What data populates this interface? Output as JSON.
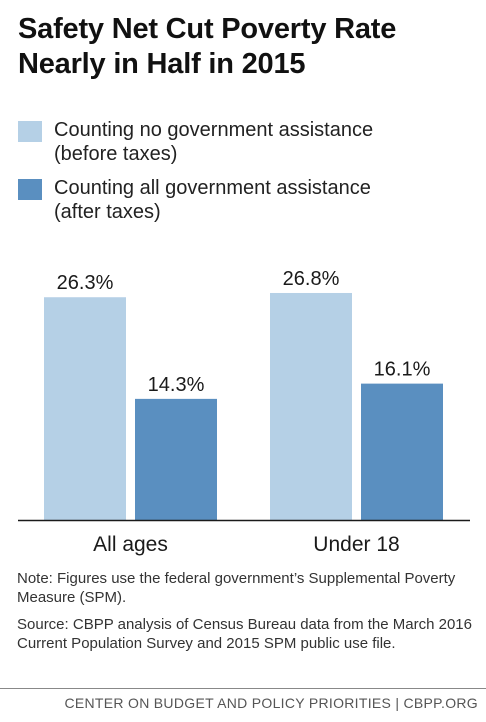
{
  "title_lines": [
    "Safety Net Cut Poverty Rate",
    "Nearly in Half in 2015"
  ],
  "colors": {
    "before": "#b5d0e6",
    "after": "#5a8fc0",
    "axis": "#1a1a1a"
  },
  "legend": [
    {
      "lines": [
        "Counting no government assistance",
        "(before taxes)"
      ]
    },
    {
      "lines": [
        "Counting all government assistance",
        "(after taxes)"
      ]
    }
  ],
  "chart_data": {
    "type": "bar",
    "categories": [
      "All ages",
      "Under 18"
    ],
    "series": [
      {
        "name": "Counting no government assistance (before taxes)",
        "values": [
          26.3,
          26.8
        ],
        "labels": [
          "26.3%",
          "26.8%"
        ]
      },
      {
        "name": "Counting all government assistance (after taxes)",
        "values": [
          14.3,
          16.1
        ],
        "labels": [
          "14.3%",
          "16.1%"
        ]
      }
    ],
    "ylim": [
      0,
      34
    ],
    "grid": false,
    "legend_position": "top-left"
  },
  "notes": [
    "Note: Figures use the federal government’s Supplemental Poverty Measure (SPM).",
    "Source: CBPP analysis of Census Bureau data from the March 2016 Current Population Survey and 2015 SPM public use file."
  ],
  "footer": "CENTER ON BUDGET AND POLICY PRIORITIES | CBPP.ORG"
}
